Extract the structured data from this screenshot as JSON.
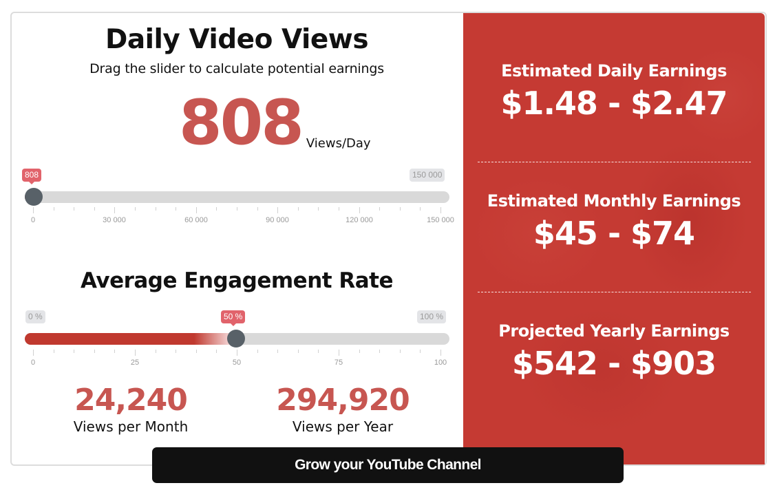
{
  "daily_views": {
    "title": "Daily Video Views",
    "subtitle": "Drag the slider to calculate potential earnings",
    "value": "808",
    "unit": "Views/Day",
    "slider": {
      "min": 0,
      "max": 150000,
      "current": 808,
      "current_label": "808",
      "max_label": "150 000",
      "tick_labels": [
        "0",
        "30 000",
        "60 000",
        "90 000",
        "120 000",
        "150 000"
      ]
    }
  },
  "engagement": {
    "title": "Average Engagement Rate",
    "slider": {
      "min": 0,
      "max": 100,
      "current": 50,
      "current_label": "50 %",
      "min_label": "0 %",
      "max_label": "100 %",
      "tick_labels": [
        "0",
        "25",
        "50",
        "75",
        "100"
      ]
    }
  },
  "stats": {
    "monthly": {
      "value": "24,240",
      "label": "Views per Month"
    },
    "yearly": {
      "value": "294,920",
      "label": "Views per Year"
    }
  },
  "earnings": {
    "daily": {
      "label": "Estimated Daily Earnings",
      "value": "$1.48 - $2.47"
    },
    "monthly": {
      "label": "Estimated Monthly Earnings",
      "value": "$45 - $74"
    },
    "yearly": {
      "label": "Projected Yearly Earnings",
      "value": "$542 - $903"
    }
  },
  "cta": {
    "label": "Grow your YouTube Channel"
  },
  "colors": {
    "accent_red": "#c75651",
    "panel_red": "#c53a33",
    "badge_red": "#e1636b",
    "thumb": "#586168",
    "track": "#d9d9d9",
    "fill_red": "#c0392f",
    "cta_bg": "#111111"
  }
}
